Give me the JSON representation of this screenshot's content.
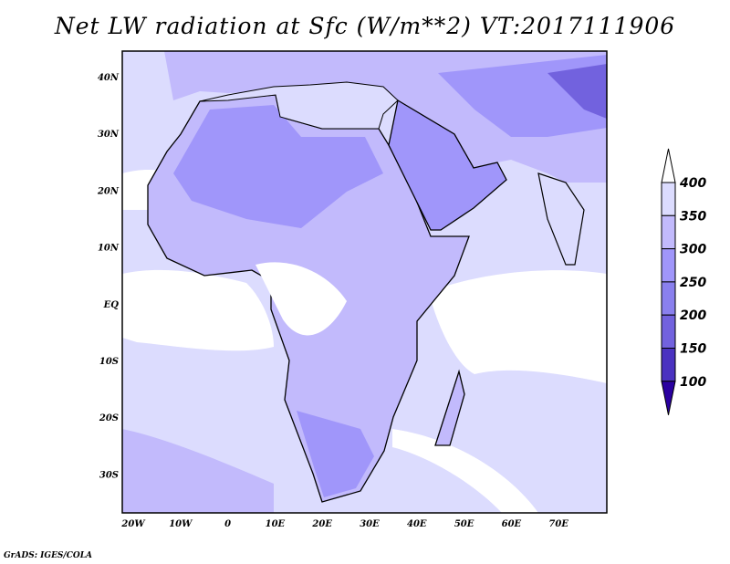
{
  "title": "Net LW radiation at Sfc (W/m**2) VT:2017111906",
  "credit": "GrADS: IGES/COLA",
  "map": {
    "lon_labels": [
      "20W",
      "10W",
      "0",
      "10E",
      "20E",
      "30E",
      "40E",
      "50E",
      "60E",
      "70E"
    ],
    "lat_labels": [
      "40N",
      "30N",
      "20N",
      "10N",
      "EQ",
      "10S",
      "20S",
      "30S"
    ],
    "lon_range": [
      -22,
      80
    ],
    "lat_range": [
      -37,
      44.5
    ]
  },
  "colorbar": {
    "levels": [
      "400",
      "350",
      "300",
      "250",
      "200",
      "150",
      "100"
    ],
    "colors": [
      "#ffffff",
      "#dcdcfe",
      "#c2bafc",
      "#a096fa",
      "#8a80ee",
      "#7262de",
      "#4a32c0",
      "#2a00a0"
    ]
  }
}
